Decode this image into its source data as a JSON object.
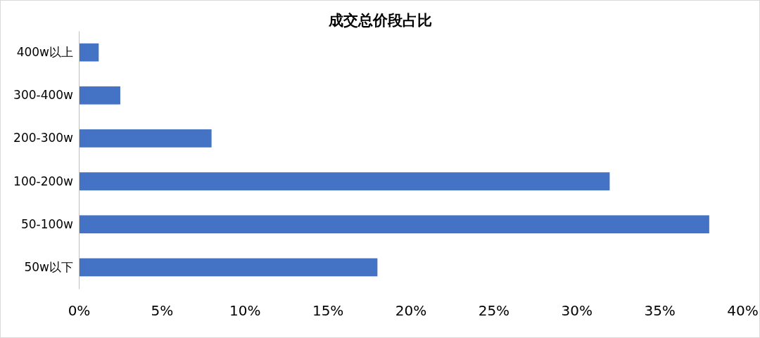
{
  "chart_data": {
    "type": "bar",
    "orientation": "horizontal",
    "title": "成交总价段占比",
    "categories": [
      "400w以上",
      "300-400w",
      "200-300w",
      "100-200w",
      "50-100w",
      "50w以下"
    ],
    "values": [
      1.2,
      2.5,
      8.0,
      32.0,
      38.0,
      18.0
    ],
    "color": "#4472c4",
    "xlim": [
      0,
      40
    ],
    "xticks": [
      {
        "value": 0,
        "label": "0%"
      },
      {
        "value": 5,
        "label": "5%"
      },
      {
        "value": 10,
        "label": "10%"
      },
      {
        "value": 15,
        "label": "15%"
      },
      {
        "value": 20,
        "label": "20%"
      },
      {
        "value": 25,
        "label": "25%"
      },
      {
        "value": 30,
        "label": "30%"
      },
      {
        "value": 35,
        "label": "35%"
      },
      {
        "value": 40,
        "label": "40%"
      }
    ],
    "grid": false
  }
}
